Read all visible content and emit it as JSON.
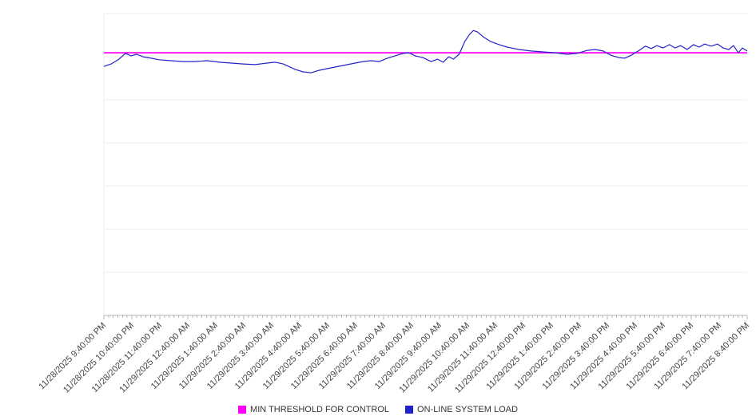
{
  "chart_data": {
    "type": "line",
    "title": "",
    "xlabel": "",
    "ylabel": "",
    "ylim": [
      0,
      100
    ],
    "x_range": [
      0,
      23
    ],
    "grid": {
      "horizontal": true,
      "divisions": 7,
      "vertical": false
    },
    "legend_position": "bottom",
    "x_minor_ticks_per_hour": 6,
    "categories": [
      "11/28/2025 9:40:00 PM",
      "11/28/2025 10:40:00 PM",
      "11/28/2025 11:40:00 PM",
      "11/29/2025 12:40:00 AM",
      "11/29/2025 1:40:00 AM",
      "11/29/2025 2:40:00 AM",
      "11/29/2025 3:40:00 AM",
      "11/29/2025 4:40:00 AM",
      "11/29/2025 5:40:00 AM",
      "11/29/2025 6:40:00 AM",
      "11/29/2025 7:40:00 AM",
      "11/29/2025 8:40:00 AM",
      "11/29/2025 9:40:00 AM",
      "11/29/2025 10:40:00 AM",
      "11/29/2025 11:40:00 AM",
      "11/29/2025 12:40:00 PM",
      "11/29/2025 1:40:00 PM",
      "11/29/2025 2:40:00 PM",
      "11/29/2025 3:40:00 PM",
      "11/29/2025 4:40:00 PM",
      "11/29/2025 5:40:00 PM",
      "11/29/2025 6:40:00 PM",
      "11/29/2025 7:40:00 PM",
      "11/29/2025 8:40:00 PM"
    ],
    "series": [
      {
        "name": "MIN THRESHOLD FOR CONTROL",
        "color": "#ff00ff",
        "type": "threshold",
        "value": 87
      },
      {
        "name": "ON-LINE SYSTEM LOAD",
        "color": "#2222cc",
        "type": "line",
        "points": [
          [
            0,
            82.5
          ],
          [
            0.26,
            83.3
          ],
          [
            0.54,
            84.9
          ],
          [
            0.77,
            86.8
          ],
          [
            0.97,
            86.0
          ],
          [
            1.17,
            86.5
          ],
          [
            1.4,
            85.7
          ],
          [
            1.69,
            85.2
          ],
          [
            1.97,
            84.7
          ],
          [
            2.4,
            84.4
          ],
          [
            2.83,
            84.1
          ],
          [
            3.26,
            84.1
          ],
          [
            3.69,
            84.4
          ],
          [
            4.12,
            83.9
          ],
          [
            4.55,
            83.6
          ],
          [
            4.98,
            83.3
          ],
          [
            5.41,
            83.1
          ],
          [
            5.83,
            83.6
          ],
          [
            6.12,
            83.9
          ],
          [
            6.41,
            83.3
          ],
          [
            6.84,
            81.5
          ],
          [
            7.12,
            80.7
          ],
          [
            7.41,
            80.4
          ],
          [
            7.69,
            81.2
          ],
          [
            8.12,
            82.0
          ],
          [
            8.55,
            82.8
          ],
          [
            8.98,
            83.6
          ],
          [
            9.27,
            84.1
          ],
          [
            9.55,
            84.4
          ],
          [
            9.84,
            84.1
          ],
          [
            10.13,
            85.2
          ],
          [
            10.41,
            86.0
          ],
          [
            10.7,
            86.8
          ],
          [
            10.9,
            87.0
          ],
          [
            11.13,
            86.0
          ],
          [
            11.41,
            85.4
          ],
          [
            11.7,
            84.1
          ],
          [
            11.93,
            84.9
          ],
          [
            12.13,
            83.9
          ],
          [
            12.33,
            85.7
          ],
          [
            12.5,
            84.9
          ],
          [
            12.7,
            86.5
          ],
          [
            12.9,
            90.7
          ],
          [
            13.07,
            93.1
          ],
          [
            13.21,
            94.4
          ],
          [
            13.36,
            93.9
          ],
          [
            13.56,
            92.3
          ],
          [
            13.84,
            90.7
          ],
          [
            14.13,
            89.7
          ],
          [
            14.42,
            88.9
          ],
          [
            14.84,
            88.1
          ],
          [
            15.27,
            87.6
          ],
          [
            15.7,
            87.3
          ],
          [
            16.13,
            87.0
          ],
          [
            16.56,
            86.5
          ],
          [
            16.91,
            86.8
          ],
          [
            17.28,
            87.8
          ],
          [
            17.56,
            88.1
          ],
          [
            17.85,
            87.6
          ],
          [
            18.13,
            86.2
          ],
          [
            18.42,
            85.4
          ],
          [
            18.62,
            85.2
          ],
          [
            18.85,
            86.2
          ],
          [
            19.14,
            87.8
          ],
          [
            19.36,
            89.2
          ],
          [
            19.57,
            88.4
          ],
          [
            19.77,
            89.4
          ],
          [
            19.99,
            88.6
          ],
          [
            20.22,
            89.7
          ],
          [
            20.42,
            88.6
          ],
          [
            20.62,
            89.4
          ],
          [
            20.85,
            88.1
          ],
          [
            21.08,
            89.7
          ],
          [
            21.28,
            88.9
          ],
          [
            21.48,
            89.9
          ],
          [
            21.71,
            89.2
          ],
          [
            21.94,
            89.9
          ],
          [
            22.14,
            88.6
          ],
          [
            22.34,
            88.1
          ],
          [
            22.51,
            89.4
          ],
          [
            22.68,
            87.0
          ],
          [
            22.83,
            88.6
          ],
          [
            23,
            87.6
          ]
        ]
      }
    ],
    "colors": {
      "gridline": "#ececec",
      "axis": "#b3b3b3",
      "tick": "#b3b3b3",
      "label": "#444444",
      "background": "#ffffff"
    }
  }
}
